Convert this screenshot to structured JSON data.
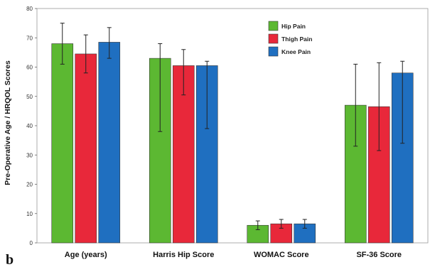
{
  "panel_label": "b",
  "chart_data": {
    "type": "bar",
    "title": "",
    "xlabel": "",
    "ylabel": "Pre-Operative Age / HRQOL Scores",
    "ylim": [
      0,
      80
    ],
    "yticks": [
      0,
      10,
      20,
      30,
      40,
      50,
      60,
      70,
      80
    ],
    "grid": false,
    "legend_position": "top-right",
    "categories": [
      "Age (years)",
      "Harris Hip Score",
      "WOMAC Score",
      "SF-36 Score"
    ],
    "series": [
      {
        "name": "Hip Pain",
        "color": "#5cb832",
        "values": [
          68,
          63,
          6,
          47
        ],
        "error_low": [
          61,
          38,
          4.5,
          33
        ],
        "error_high": [
          75,
          68,
          7.5,
          61
        ]
      },
      {
        "name": "Thigh Pain",
        "color": "#e8283a",
        "values": [
          64.5,
          60.5,
          6.5,
          46.5
        ],
        "error_low": [
          58,
          50.5,
          5,
          31.5
        ],
        "error_high": [
          71,
          66,
          8,
          61.5
        ]
      },
      {
        "name": "Knee Pain",
        "color": "#1f6fc0",
        "values": [
          68.5,
          60.5,
          6.5,
          58
        ],
        "error_low": [
          63,
          39,
          5,
          34
        ],
        "error_high": [
          73.5,
          62,
          8,
          62
        ]
      }
    ]
  }
}
